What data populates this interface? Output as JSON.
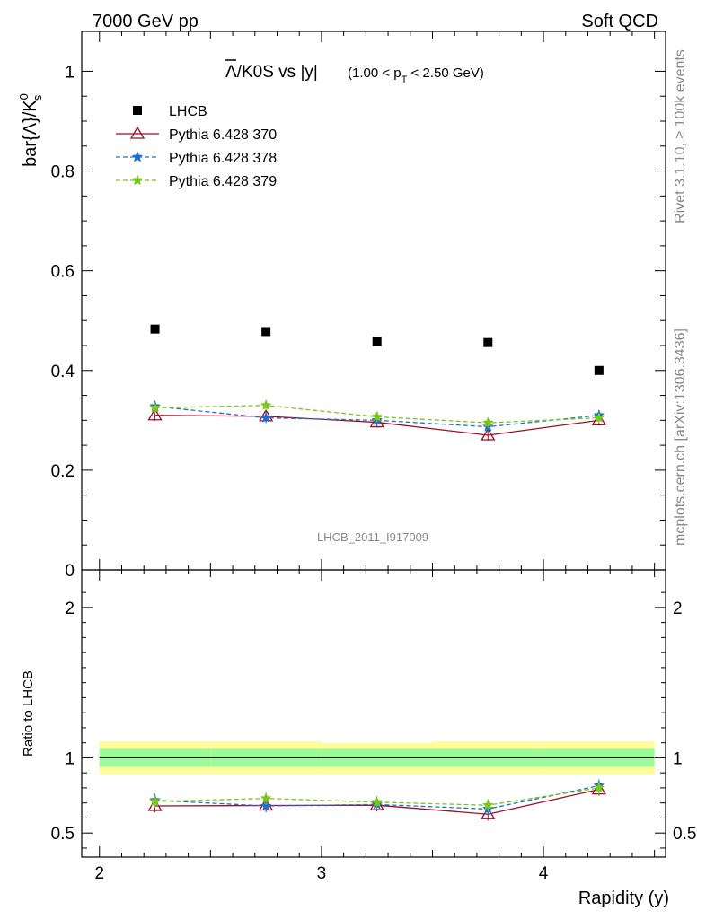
{
  "header": {
    "left": "7000 GeV pp",
    "right": "Soft QCD"
  },
  "side_labels": {
    "rivet": "Rivet 3.1.10, ≥ 100k events",
    "mcplots": "mcplots.cern.ch [arXiv:1306.3436]"
  },
  "watermark": "LHCB_2011_I917009",
  "chart_data": [
    {
      "type": "scatter",
      "title_main": "Λ/K0S vs |y|",
      "title_bar_symbol": "Λ",
      "title_rest": "/K0S vs |y|",
      "title_cut": "(1.00 < p",
      "title_cut_sub": "T",
      "title_cut_end": " < 2.50 GeV)",
      "ylabel": "bar{Λ}/K",
      "ylabel_sup": "0",
      "ylabel_sub": "s",
      "xlim": [
        1.92,
        4.55
      ],
      "ylim": [
        0.0,
        1.08
      ],
      "yticks": [
        0,
        0.2,
        0.4,
        0.6,
        0.8,
        1
      ],
      "ytick_labels": [
        "0",
        "0.2",
        "0.4",
        "0.6",
        "0.8",
        "1"
      ],
      "legend_position": "top-left",
      "x": [
        2.25,
        2.75,
        3.25,
        3.75,
        4.25
      ],
      "series": [
        {
          "name": "LHCB",
          "color": "#000000",
          "marker": "square",
          "line": "none",
          "values": [
            0.483,
            0.478,
            0.458,
            0.456,
            0.4
          ]
        },
        {
          "name": "Pythia 6.428 370",
          "color": "#9b0f27",
          "marker": "triangle-open",
          "line": "solid",
          "values": [
            0.31,
            0.308,
            0.296,
            0.27,
            0.3
          ]
        },
        {
          "name": "Pythia 6.428 378",
          "color": "#1f6fd0",
          "marker": "star",
          "line": "dashed",
          "values": [
            0.328,
            0.305,
            0.3,
            0.287,
            0.31
          ]
        },
        {
          "name": "Pythia 6.428 379",
          "color": "#79c71d",
          "marker": "star",
          "line": "dashed",
          "values": [
            0.325,
            0.33,
            0.307,
            0.295,
            0.305
          ]
        }
      ]
    },
    {
      "type": "line",
      "ylabel": "Ratio to LHCB",
      "xlabel": "Rapidity (y)",
      "xlim": [
        1.92,
        4.55
      ],
      "ylim": [
        0.34,
        2.25
      ],
      "xticks": [
        2,
        3,
        4
      ],
      "xtick_labels": [
        "2",
        "3",
        "4"
      ],
      "yticks": [
        0.5,
        1,
        2
      ],
      "ytick_labels": [
        "0.5",
        "1",
        "2"
      ],
      "x": [
        2.25,
        2.75,
        3.25,
        3.75,
        4.25
      ],
      "bins": [
        [
          2.0,
          2.5
        ],
        [
          2.5,
          3.0
        ],
        [
          3.0,
          3.5
        ],
        [
          3.5,
          4.0
        ],
        [
          4.0,
          4.5
        ]
      ],
      "band_inner": [
        [
          0.94,
          1.06
        ],
        [
          0.94,
          1.06
        ],
        [
          0.94,
          1.06
        ],
        [
          0.94,
          1.06
        ],
        [
          0.94,
          1.06
        ]
      ],
      "band_outer": [
        [
          0.89,
          1.11
        ],
        [
          0.89,
          1.11
        ],
        [
          0.89,
          1.1
        ],
        [
          0.89,
          1.11
        ],
        [
          0.89,
          1.11
        ]
      ],
      "band_colors": {
        "inner": "#9dfa98",
        "outer": "#fdfd9c"
      },
      "series": [
        {
          "name": "Pythia 6.428 370",
          "color": "#9b0f27",
          "values": [
            0.68,
            0.683,
            0.685,
            0.625,
            0.79
          ]
        },
        {
          "name": "Pythia 6.428 378",
          "color": "#1f6fd0",
          "values": [
            0.718,
            0.68,
            0.69,
            0.66,
            0.815
          ]
        },
        {
          "name": "Pythia 6.428 379",
          "color": "#79c71d",
          "values": [
            0.71,
            0.73,
            0.705,
            0.685,
            0.8
          ]
        }
      ]
    }
  ]
}
